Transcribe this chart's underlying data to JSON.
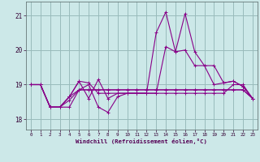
{
  "xlabel": "Windchill (Refroidissement éolien,°C)",
  "background_color": "#cce8e8",
  "line_color": "#880088",
  "grid_color": "#99bbbb",
  "xlim": [
    -0.5,
    23.5
  ],
  "ylim": [
    17.7,
    21.4
  ],
  "yticks": [
    18,
    19,
    20,
    21
  ],
  "xticks": [
    0,
    1,
    2,
    3,
    4,
    5,
    6,
    7,
    8,
    9,
    10,
    11,
    12,
    13,
    14,
    15,
    16,
    17,
    18,
    19,
    20,
    21,
    22,
    23
  ],
  "series": [
    [
      19.0,
      19.0,
      18.35,
      18.35,
      18.65,
      19.1,
      19.05,
      18.75,
      18.75,
      18.75,
      18.75,
      18.75,
      18.75,
      18.75,
      18.75,
      18.75,
      18.75,
      18.75,
      18.75,
      18.75,
      18.75,
      19.0,
      19.0,
      18.6
    ],
    [
      19.0,
      19.0,
      18.35,
      18.35,
      18.55,
      18.85,
      18.85,
      18.85,
      18.85,
      18.85,
      18.85,
      18.85,
      18.85,
      18.85,
      18.85,
      18.85,
      18.85,
      18.85,
      18.85,
      18.85,
      18.85,
      18.85,
      18.85,
      18.6
    ],
    [
      19.0,
      19.0,
      18.35,
      18.35,
      18.35,
      18.85,
      19.0,
      18.35,
      18.2,
      18.65,
      18.75,
      18.75,
      18.75,
      18.75,
      20.1,
      19.95,
      20.0,
      19.55,
      19.55,
      19.0,
      19.05,
      19.1,
      18.95,
      18.6
    ],
    [
      19.0,
      19.0,
      18.35,
      18.35,
      18.65,
      19.1,
      18.6,
      19.15,
      18.6,
      18.75,
      18.75,
      18.75,
      18.75,
      20.5,
      21.1,
      19.95,
      21.05,
      19.95,
      19.55,
      19.55,
      19.05,
      19.1,
      18.95,
      18.6
    ],
    [
      19.0,
      19.0,
      18.35,
      18.35,
      18.65,
      18.85,
      18.85,
      18.85,
      18.85,
      18.85,
      18.85,
      18.85,
      18.85,
      18.85,
      18.85,
      18.85,
      18.85,
      18.85,
      18.85,
      18.85,
      18.85,
      18.85,
      18.85,
      18.6
    ]
  ]
}
